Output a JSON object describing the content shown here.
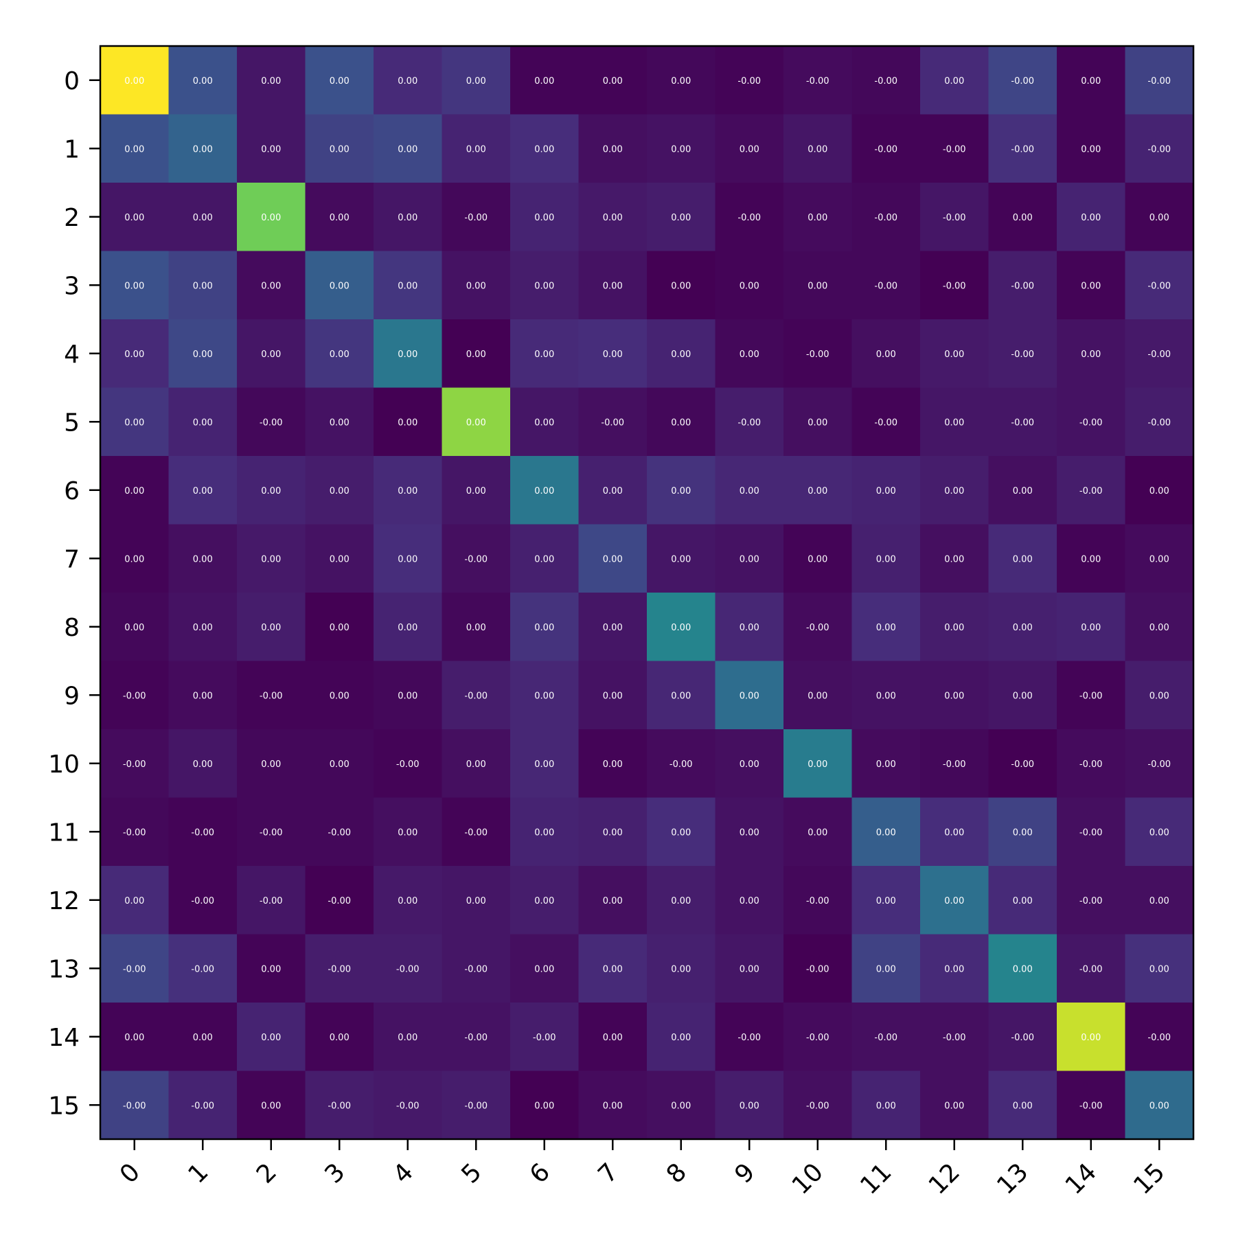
{
  "chart_data": {
    "type": "heatmap",
    "colormap": "viridis",
    "x_ticks": [
      "0",
      "1",
      "2",
      "3",
      "4",
      "5",
      "6",
      "7",
      "8",
      "9",
      "10",
      "11",
      "12",
      "13",
      "14",
      "15"
    ],
    "y_ticks": [
      "0",
      "1",
      "2",
      "3",
      "4",
      "5",
      "6",
      "7",
      "8",
      "9",
      "10",
      "11",
      "12",
      "13",
      "14",
      "15"
    ],
    "x_tick_rotation": 45,
    "color_range": [
      0,
      1
    ],
    "intensity": [
      [
        1.0,
        0.25,
        0.06,
        0.25,
        0.12,
        0.16,
        0.01,
        0.01,
        0.02,
        0.01,
        0.03,
        0.02,
        0.12,
        0.21,
        0.01,
        0.2
      ],
      [
        0.25,
        0.32,
        0.06,
        0.2,
        0.22,
        0.1,
        0.13,
        0.04,
        0.05,
        0.03,
        0.06,
        0.01,
        0.01,
        0.14,
        0.01,
        0.1
      ],
      [
        0.06,
        0.06,
        0.78,
        0.03,
        0.06,
        0.02,
        0.1,
        0.07,
        0.08,
        0.01,
        0.03,
        0.02,
        0.06,
        0.01,
        0.1,
        0.01
      ],
      [
        0.25,
        0.2,
        0.03,
        0.3,
        0.16,
        0.05,
        0.08,
        0.05,
        0.0,
        0.01,
        0.02,
        0.02,
        0.0,
        0.08,
        0.01,
        0.12
      ],
      [
        0.12,
        0.22,
        0.06,
        0.16,
        0.4,
        0.0,
        0.12,
        0.13,
        0.1,
        0.02,
        0.01,
        0.04,
        0.07,
        0.08,
        0.05,
        0.07
      ],
      [
        0.16,
        0.1,
        0.02,
        0.05,
        0.0,
        0.83,
        0.06,
        0.04,
        0.02,
        0.08,
        0.04,
        0.01,
        0.06,
        0.06,
        0.05,
        0.08
      ],
      [
        0.01,
        0.13,
        0.1,
        0.08,
        0.12,
        0.06,
        0.4,
        0.09,
        0.15,
        0.11,
        0.11,
        0.1,
        0.08,
        0.04,
        0.08,
        0.0
      ],
      [
        0.01,
        0.04,
        0.07,
        0.05,
        0.13,
        0.04,
        0.09,
        0.22,
        0.06,
        0.05,
        0.01,
        0.09,
        0.04,
        0.12,
        0.01,
        0.03
      ],
      [
        0.02,
        0.05,
        0.08,
        0.0,
        0.1,
        0.02,
        0.15,
        0.06,
        0.45,
        0.11,
        0.03,
        0.13,
        0.08,
        0.09,
        0.1,
        0.04
      ],
      [
        0.01,
        0.03,
        0.01,
        0.01,
        0.02,
        0.08,
        0.11,
        0.05,
        0.11,
        0.36,
        0.04,
        0.05,
        0.05,
        0.06,
        0.01,
        0.08
      ],
      [
        0.03,
        0.06,
        0.02,
        0.02,
        0.01,
        0.04,
        0.11,
        0.01,
        0.03,
        0.04,
        0.42,
        0.03,
        0.02,
        0.0,
        0.03,
        0.04
      ],
      [
        0.02,
        0.01,
        0.02,
        0.02,
        0.04,
        0.01,
        0.1,
        0.09,
        0.13,
        0.05,
        0.03,
        0.3,
        0.13,
        0.2,
        0.04,
        0.12
      ],
      [
        0.12,
        0.01,
        0.06,
        0.0,
        0.07,
        0.06,
        0.08,
        0.04,
        0.08,
        0.05,
        0.02,
        0.13,
        0.37,
        0.12,
        0.04,
        0.04
      ],
      [
        0.21,
        0.14,
        0.01,
        0.08,
        0.08,
        0.06,
        0.04,
        0.12,
        0.09,
        0.06,
        0.0,
        0.2,
        0.12,
        0.45,
        0.06,
        0.14
      ],
      [
        0.01,
        0.01,
        0.1,
        0.01,
        0.05,
        0.05,
        0.08,
        0.01,
        0.1,
        0.01,
        0.03,
        0.04,
        0.04,
        0.06,
        0.92,
        0.01
      ],
      [
        0.2,
        0.1,
        0.01,
        0.08,
        0.07,
        0.08,
        0.0,
        0.03,
        0.04,
        0.08,
        0.04,
        0.1,
        0.04,
        0.12,
        0.01,
        0.35
      ]
    ],
    "cell_labels": [
      [
        "0.00",
        "0.00",
        "0.00",
        "0.00",
        "0.00",
        "0.00",
        "0.00",
        "0.00",
        "0.00",
        "-0.00",
        "-0.00",
        "-0.00",
        "0.00",
        "-0.00",
        "0.00",
        "-0.00"
      ],
      [
        "0.00",
        "0.00",
        "0.00",
        "0.00",
        "0.00",
        "0.00",
        "0.00",
        "0.00",
        "0.00",
        "0.00",
        "0.00",
        "-0.00",
        "-0.00",
        "-0.00",
        "0.00",
        "-0.00"
      ],
      [
        "0.00",
        "0.00",
        "0.00",
        "0.00",
        "0.00",
        "-0.00",
        "0.00",
        "0.00",
        "0.00",
        "-0.00",
        "0.00",
        "-0.00",
        "-0.00",
        "0.00",
        "0.00",
        "0.00"
      ],
      [
        "0.00",
        "0.00",
        "0.00",
        "0.00",
        "0.00",
        "0.00",
        "0.00",
        "0.00",
        "0.00",
        "0.00",
        "0.00",
        "-0.00",
        "-0.00",
        "-0.00",
        "0.00",
        "-0.00"
      ],
      [
        "0.00",
        "0.00",
        "0.00",
        "0.00",
        "0.00",
        "0.00",
        "0.00",
        "0.00",
        "0.00",
        "0.00",
        "-0.00",
        "0.00",
        "0.00",
        "-0.00",
        "0.00",
        "-0.00"
      ],
      [
        "0.00",
        "0.00",
        "-0.00",
        "0.00",
        "0.00",
        "0.00",
        "0.00",
        "-0.00",
        "0.00",
        "-0.00",
        "0.00",
        "-0.00",
        "0.00",
        "-0.00",
        "-0.00",
        "-0.00"
      ],
      [
        "0.00",
        "0.00",
        "0.00",
        "0.00",
        "0.00",
        "0.00",
        "0.00",
        "0.00",
        "0.00",
        "0.00",
        "0.00",
        "0.00",
        "0.00",
        "0.00",
        "-0.00",
        "0.00"
      ],
      [
        "0.00",
        "0.00",
        "0.00",
        "0.00",
        "0.00",
        "-0.00",
        "0.00",
        "0.00",
        "0.00",
        "0.00",
        "0.00",
        "0.00",
        "0.00",
        "0.00",
        "0.00",
        "0.00"
      ],
      [
        "0.00",
        "0.00",
        "0.00",
        "0.00",
        "0.00",
        "0.00",
        "0.00",
        "0.00",
        "0.00",
        "0.00",
        "-0.00",
        "0.00",
        "0.00",
        "0.00",
        "0.00",
        "0.00"
      ],
      [
        "-0.00",
        "0.00",
        "-0.00",
        "0.00",
        "0.00",
        "-0.00",
        "0.00",
        "0.00",
        "0.00",
        "0.00",
        "0.00",
        "0.00",
        "0.00",
        "0.00",
        "-0.00",
        "0.00"
      ],
      [
        "-0.00",
        "0.00",
        "0.00",
        "0.00",
        "-0.00",
        "0.00",
        "0.00",
        "0.00",
        "-0.00",
        "0.00",
        "0.00",
        "0.00",
        "-0.00",
        "-0.00",
        "-0.00",
        "-0.00"
      ],
      [
        "-0.00",
        "-0.00",
        "-0.00",
        "-0.00",
        "0.00",
        "-0.00",
        "0.00",
        "0.00",
        "0.00",
        "0.00",
        "0.00",
        "0.00",
        "0.00",
        "0.00",
        "-0.00",
        "0.00"
      ],
      [
        "0.00",
        "-0.00",
        "-0.00",
        "-0.00",
        "0.00",
        "0.00",
        "0.00",
        "0.00",
        "0.00",
        "0.00",
        "-0.00",
        "0.00",
        "0.00",
        "0.00",
        "-0.00",
        "0.00"
      ],
      [
        "-0.00",
        "-0.00",
        "0.00",
        "-0.00",
        "-0.00",
        "-0.00",
        "0.00",
        "0.00",
        "0.00",
        "0.00",
        "-0.00",
        "0.00",
        "0.00",
        "0.00",
        "-0.00",
        "0.00"
      ],
      [
        "0.00",
        "0.00",
        "0.00",
        "0.00",
        "0.00",
        "-0.00",
        "-0.00",
        "0.00",
        "0.00",
        "-0.00",
        "-0.00",
        "-0.00",
        "-0.00",
        "-0.00",
        "0.00",
        "-0.00"
      ],
      [
        "-0.00",
        "-0.00",
        "0.00",
        "-0.00",
        "-0.00",
        "-0.00",
        "0.00",
        "0.00",
        "0.00",
        "0.00",
        "-0.00",
        "0.00",
        "0.00",
        "0.00",
        "-0.00",
        "0.00"
      ]
    ],
    "title": "",
    "xlabel": "",
    "ylabel": "",
    "grid": false,
    "colorbar": false
  }
}
